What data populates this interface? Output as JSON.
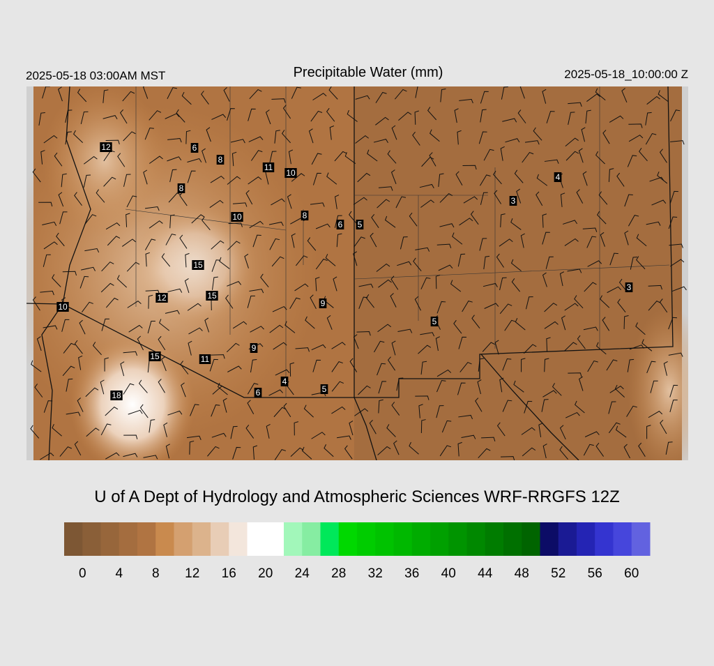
{
  "header": {
    "left": "2025-05-18 03:00AM MST",
    "title": "Precipitable Water (mm)",
    "right": "2025-05-18_10:00:00 Z"
  },
  "stations": [
    "12",
    "6",
    "8",
    "11",
    "10",
    "8",
    "10",
    "8",
    "6",
    "5",
    "3",
    "4",
    "15",
    "12",
    "15",
    "9",
    "10",
    "5",
    "3",
    "15",
    "11",
    "9",
    "18",
    "4",
    "6",
    "5"
  ],
  "credit": "U of A Dept of Hydrology and Atmospheric Sciences WRF-RRGFS 12Z",
  "colorbar": {
    "colors": [
      "#7d5734",
      "#8a5f38",
      "#97663b",
      "#a46d3f",
      "#b07442",
      "#c98a4e",
      "#d4a070",
      "#dcb38c",
      "#e8cdb6",
      "#f3e6dc",
      "#ffffff",
      "#ffffff",
      "#a2f7ba",
      "#86eda2",
      "#00e85a",
      "#00d800",
      "#00cc00",
      "#00c200",
      "#00b800",
      "#00ac00",
      "#00a000",
      "#009400",
      "#008800",
      "#007c00",
      "#007000",
      "#006400",
      "#0c0c66",
      "#1a1a94",
      "#2424b4",
      "#3434d0",
      "#4646dc",
      "#6262e0"
    ],
    "labels": [
      "0",
      "4",
      "8",
      "12",
      "16",
      "20",
      "24",
      "28",
      "32",
      "36",
      "40",
      "44",
      "48",
      "52",
      "56",
      "60"
    ]
  }
}
